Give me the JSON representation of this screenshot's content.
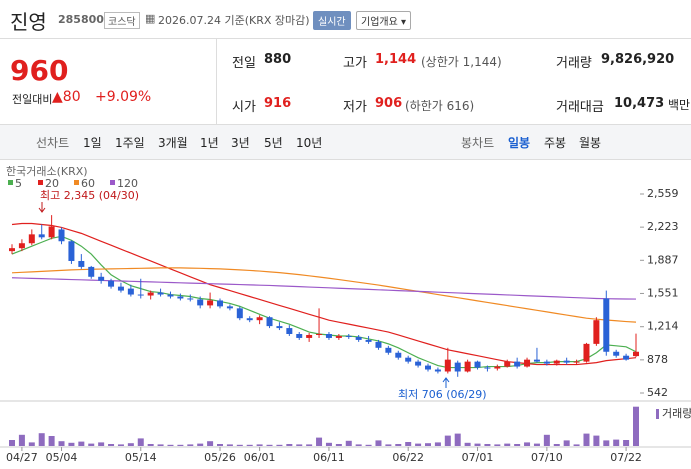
{
  "header": {
    "name": "진영",
    "code": "285800",
    "market": "코스닥",
    "date": "2026.07.24 기준(KRX 장마감)",
    "realtime": "실시간",
    "company": "기업개요 ▾"
  },
  "price": {
    "current": "960",
    "change_label": "전일대비",
    "change": "80",
    "change_pct": "+9.09%"
  },
  "quote": {
    "rows": [
      [
        {
          "label": "전일",
          "value": "880"
        },
        {
          "label": "고가",
          "value": "1,144",
          "note": "(상한가 1,144)"
        },
        {
          "label": "거래량",
          "value": "9,826,920"
        }
      ],
      [
        {
          "label": "시가",
          "value": "916"
        },
        {
          "label": "저가",
          "value": "906",
          "note": "(하한가 616)"
        },
        {
          "label": "거래대금",
          "value": "10,473",
          "unit": "백만"
        }
      ]
    ]
  },
  "tabs": {
    "line": [
      "선차트",
      "1일",
      "1주일",
      "3개월",
      "1년",
      "3년",
      "5년",
      "10년"
    ],
    "candle": [
      "봉차트",
      "일봉",
      "주봉",
      "월봉"
    ]
  },
  "chart_data": {
    "type": "candlestick",
    "source": "한국거래소(KRX)",
    "volume_label": "거래량",
    "categories": [
      null,
      "04/27",
      null,
      null,
      null,
      "05/04",
      null,
      null,
      null,
      null,
      null,
      null,
      null,
      "05/14",
      null,
      null,
      null,
      null,
      null,
      null,
      null,
      "05/26",
      null,
      null,
      null,
      "06/01",
      null,
      null,
      null,
      null,
      null,
      null,
      "06/11",
      null,
      null,
      null,
      null,
      null,
      null,
      null,
      "06/22",
      null,
      null,
      null,
      null,
      null,
      null,
      "07/01",
      null,
      null,
      null,
      null,
      null,
      null,
      "07/10",
      null,
      null,
      null,
      null,
      null,
      null,
      null,
      "07/22",
      null
    ],
    "open": [
      1980,
      2010,
      2060,
      2150,
      2120,
      2200,
      2080,
      1880,
      1820,
      1720,
      1680,
      1620,
      1600,
      1540,
      1530,
      1560,
      1540,
      1520,
      1500,
      1490,
      1430,
      1480,
      1420,
      1400,
      1300,
      1280,
      1310,
      1220,
      1200,
      1140,
      1100,
      1130,
      1140,
      1100,
      1120,
      1110,
      1080,
      1060,
      1000,
      950,
      900,
      860,
      820,
      780,
      760,
      850,
      760,
      860,
      800,
      790,
      810,
      860,
      810,
      880,
      860,
      840,
      870,
      850,
      860,
      1040,
      1500,
      960,
      920,
      916
    ],
    "high": [
      2050,
      2100,
      2200,
      2250,
      2345,
      2220,
      2090,
      1950,
      1830,
      1760,
      1700,
      1660,
      1640,
      1700,
      1580,
      1600,
      1570,
      1550,
      1540,
      1520,
      1560,
      1500,
      1440,
      1420,
      1320,
      1330,
      1320,
      1260,
      1230,
      1160,
      1150,
      1400,
      1160,
      1140,
      1140,
      1130,
      1120,
      1080,
      1020,
      970,
      920,
      880,
      840,
      800,
      1000,
      870,
      880,
      870,
      820,
      830,
      880,
      900,
      900,
      1000,
      880,
      880,
      900,
      880,
      1050,
      1310,
      1580,
      980,
      940,
      1144
    ],
    "low": [
      1950,
      1980,
      2040,
      2100,
      2100,
      2050,
      1850,
      1800,
      1700,
      1650,
      1600,
      1560,
      1520,
      1500,
      1490,
      1520,
      1500,
      1480,
      1470,
      1400,
      1400,
      1400,
      1380,
      1280,
      1260,
      1240,
      1200,
      1180,
      1120,
      1080,
      1060,
      1100,
      1080,
      1080,
      1090,
      1060,
      1040,
      980,
      930,
      880,
      840,
      800,
      760,
      740,
      740,
      706,
      750,
      780,
      760,
      770,
      800,
      790,
      800,
      850,
      820,
      820,
      830,
      830,
      850,
      1020,
      920,
      900,
      870,
      906
    ],
    "close": [
      2010,
      2060,
      2150,
      2120,
      2230,
      2080,
      1880,
      1820,
      1720,
      1680,
      1620,
      1580,
      1540,
      1530,
      1560,
      1540,
      1520,
      1500,
      1490,
      1430,
      1480,
      1420,
      1400,
      1300,
      1280,
      1310,
      1220,
      1200,
      1140,
      1100,
      1130,
      1140,
      1100,
      1120,
      1110,
      1080,
      1060,
      1000,
      950,
      900,
      860,
      820,
      780,
      760,
      880,
      760,
      860,
      800,
      790,
      810,
      860,
      810,
      880,
      860,
      840,
      870,
      850,
      860,
      1040,
      1280,
      960,
      920,
      880,
      960
    ],
    "volume": [
      1500000,
      2800000,
      900000,
      3200000,
      2500000,
      1200000,
      800000,
      1100000,
      600000,
      900000,
      500000,
      400000,
      700000,
      1900000,
      500000,
      400000,
      300000,
      300000,
      400000,
      600000,
      1200000,
      500000,
      400000,
      300000,
      300000,
      400000,
      300000,
      300000,
      500000,
      400000,
      400000,
      2100000,
      800000,
      500000,
      1300000,
      400000,
      300000,
      1400000,
      400000,
      500000,
      1000000,
      600000,
      700000,
      900000,
      2600000,
      3100000,
      800000,
      600000,
      500000,
      400000,
      600000,
      500000,
      900000,
      600000,
      2800000,
      500000,
      1400000,
      400000,
      3100000,
      2600000,
      1400000,
      1600000,
      1500000,
      9826920
    ],
    "volume_color": "#8e6bbf",
    "volume_ylim": [
      0,
      10000000
    ],
    "up_color": "#e0201e",
    "down_color": "#2a62d6",
    "series": [
      {
        "name": "5",
        "color": "#4caf50",
        "values": [
          1950,
          1990,
          2030,
          2070,
          2110,
          2130,
          2090,
          2030,
          1950,
          1840,
          1740,
          1680,
          1630,
          1600,
          1570,
          1560,
          1540,
          1530,
          1520,
          1500,
          1490,
          1470,
          1450,
          1420,
          1380,
          1340,
          1300,
          1270,
          1240,
          1200,
          1160,
          1140,
          1130,
          1120,
          1120,
          1110,
          1090,
          1070,
          1040,
          1000,
          950,
          900,
          860,
          820,
          800,
          800,
          800,
          800,
          810,
          810,
          810,
          820,
          840,
          850,
          850,
          860,
          860,
          860,
          890,
          950,
          1030,
          1020,
          1010,
          960
        ]
      },
      {
        "name": "20",
        "color": "#e0201e",
        "values": [
          2250,
          2260,
          2260,
          2250,
          2240,
          2220,
          2190,
          2160,
          2120,
          2080,
          2040,
          2000,
          1960,
          1920,
          1880,
          1840,
          1800,
          1760,
          1720,
          1680,
          1640,
          1610,
          1580,
          1550,
          1520,
          1490,
          1460,
          1430,
          1400,
          1370,
          1340,
          1310,
          1280,
          1260,
          1240,
          1220,
          1200,
          1180,
          1160,
          1130,
          1100,
          1070,
          1040,
          1010,
          980,
          960,
          940,
          920,
          900,
          880,
          860,
          850,
          840,
          830,
          830,
          830,
          830,
          830,
          840,
          850,
          870,
          880,
          890,
          900
        ]
      },
      {
        "name": "60",
        "color": "#f08a24",
        "values": [
          1760,
          1765,
          1770,
          1775,
          1780,
          1785,
          1790,
          1793,
          1796,
          1798,
          1800,
          1802,
          1804,
          1806,
          1808,
          1810,
          1810,
          1810,
          1808,
          1806,
          1803,
          1800,
          1795,
          1790,
          1784,
          1778,
          1770,
          1762,
          1752,
          1742,
          1730,
          1718,
          1705,
          1692,
          1678,
          1664,
          1650,
          1636,
          1620,
          1604,
          1588,
          1572,
          1556,
          1540,
          1524,
          1508,
          1492,
          1476,
          1460,
          1444,
          1428,
          1412,
          1396,
          1380,
          1364,
          1348,
          1332,
          1316,
          1300,
          1290,
          1282,
          1274,
          1266,
          1260
        ]
      },
      {
        "name": "120",
        "color": "#9b59c9",
        "values": [
          1710,
          1707,
          1704,
          1701,
          1698,
          1695,
          1692,
          1689,
          1686,
          1683,
          1680,
          1677,
          1674,
          1671,
          1668,
          1665,
          1662,
          1659,
          1656,
          1653,
          1650,
          1647,
          1644,
          1641,
          1638,
          1635,
          1632,
          1628,
          1624,
          1620,
          1616,
          1612,
          1608,
          1604,
          1600,
          1596,
          1592,
          1588,
          1584,
          1580,
          1576,
          1572,
          1568,
          1564,
          1560,
          1556,
          1552,
          1548,
          1544,
          1540,
          1536,
          1532,
          1528,
          1524,
          1520,
          1516,
          1512,
          1508,
          1504,
          1500,
          1498,
          1496,
          1495,
          1494
        ]
      }
    ],
    "ylim": [
      542,
      2559
    ],
    "yticks": [
      {
        "value": 542,
        "label": "542"
      },
      {
        "value": 878,
        "label": "878"
      },
      {
        "value": 1214,
        "label": "1,214"
      },
      {
        "value": 1551,
        "label": "1,551"
      },
      {
        "value": 1887,
        "label": "1,887"
      },
      {
        "value": 2223,
        "label": "2,223"
      },
      {
        "value": 2559,
        "label": "2,559"
      }
    ],
    "annotations": [
      {
        "text": "최고 2,345 (04/30)"
      },
      {
        "text": "최저 706 (06/29)"
      }
    ]
  }
}
